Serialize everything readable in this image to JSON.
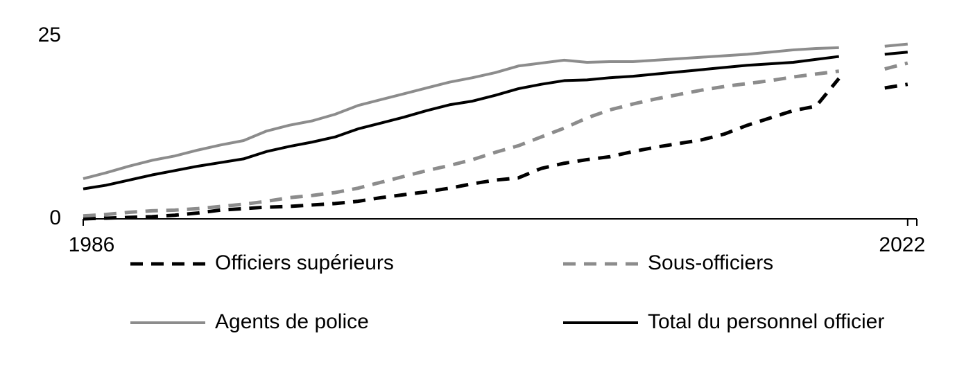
{
  "chart_data": {
    "type": "line",
    "x": [
      1986,
      1987,
      1988,
      1989,
      1990,
      1991,
      1992,
      1993,
      1994,
      1995,
      1996,
      1997,
      1998,
      1999,
      2000,
      2001,
      2002,
      2003,
      2004,
      2005,
      2006,
      2007,
      2008,
      2009,
      2010,
      2011,
      2012,
      2013,
      2014,
      2015,
      2016,
      2017,
      2018,
      2019,
      2020,
      2021,
      2022
    ],
    "xlim": [
      1986,
      2022.4
    ],
    "xticks": [
      1986,
      2022
    ],
    "ylim": [
      0,
      25
    ],
    "yticks": [
      0,
      25
    ],
    "series": [
      {
        "name": "Officiers supérieurs",
        "color": "#000000",
        "dash": true,
        "values": [
          0.0,
          0.1,
          0.2,
          0.3,
          0.5,
          0.8,
          1.2,
          1.4,
          1.6,
          1.7,
          1.9,
          2.1,
          2.4,
          2.9,
          3.3,
          3.7,
          4.2,
          4.8,
          5.3,
          5.6,
          6.9,
          7.6,
          8.1,
          8.5,
          9.2,
          9.8,
          10.3,
          10.8,
          11.6,
          12.8,
          13.8,
          14.8,
          15.4,
          19.2,
          null,
          17.9,
          18.4
        ]
      },
      {
        "name": "Sous-officiers",
        "color": "#8c8c8c",
        "dash": true,
        "values": [
          0.4,
          0.6,
          0.9,
          1.1,
          1.2,
          1.4,
          1.7,
          2.0,
          2.4,
          2.9,
          3.2,
          3.6,
          4.2,
          5.0,
          5.8,
          6.6,
          7.3,
          8.1,
          9.1,
          10.0,
          11.2,
          12.4,
          13.8,
          14.9,
          15.7,
          16.4,
          17.0,
          17.6,
          18.1,
          18.5,
          18.9,
          19.4,
          19.8,
          20.2,
          null,
          20.5,
          21.3
        ]
      },
      {
        "name": "Agents de police",
        "color": "#8c8c8c",
        "dash": false,
        "values": [
          5.5,
          6.3,
          7.2,
          8.0,
          8.6,
          9.4,
          10.1,
          10.7,
          12.0,
          12.8,
          13.4,
          14.3,
          15.5,
          16.3,
          17.1,
          17.9,
          18.7,
          19.3,
          20.0,
          20.9,
          21.3,
          21.7,
          21.4,
          21.5,
          21.5,
          21.7,
          21.9,
          22.1,
          22.3,
          22.5,
          22.8,
          23.1,
          23.3,
          23.4,
          null,
          23.6,
          23.9
        ]
      },
      {
        "name": "Total du personnel officier",
        "color": "#000000",
        "dash": false,
        "values": [
          4.1,
          4.6,
          5.3,
          6.0,
          6.6,
          7.2,
          7.7,
          8.2,
          9.2,
          9.9,
          10.5,
          11.2,
          12.3,
          13.1,
          13.9,
          14.8,
          15.6,
          16.1,
          16.9,
          17.8,
          18.4,
          18.9,
          19.0,
          19.3,
          19.5,
          19.8,
          20.1,
          20.4,
          20.7,
          21.0,
          21.2,
          21.4,
          21.8,
          22.2,
          null,
          22.5,
          22.8
        ]
      }
    ]
  }
}
